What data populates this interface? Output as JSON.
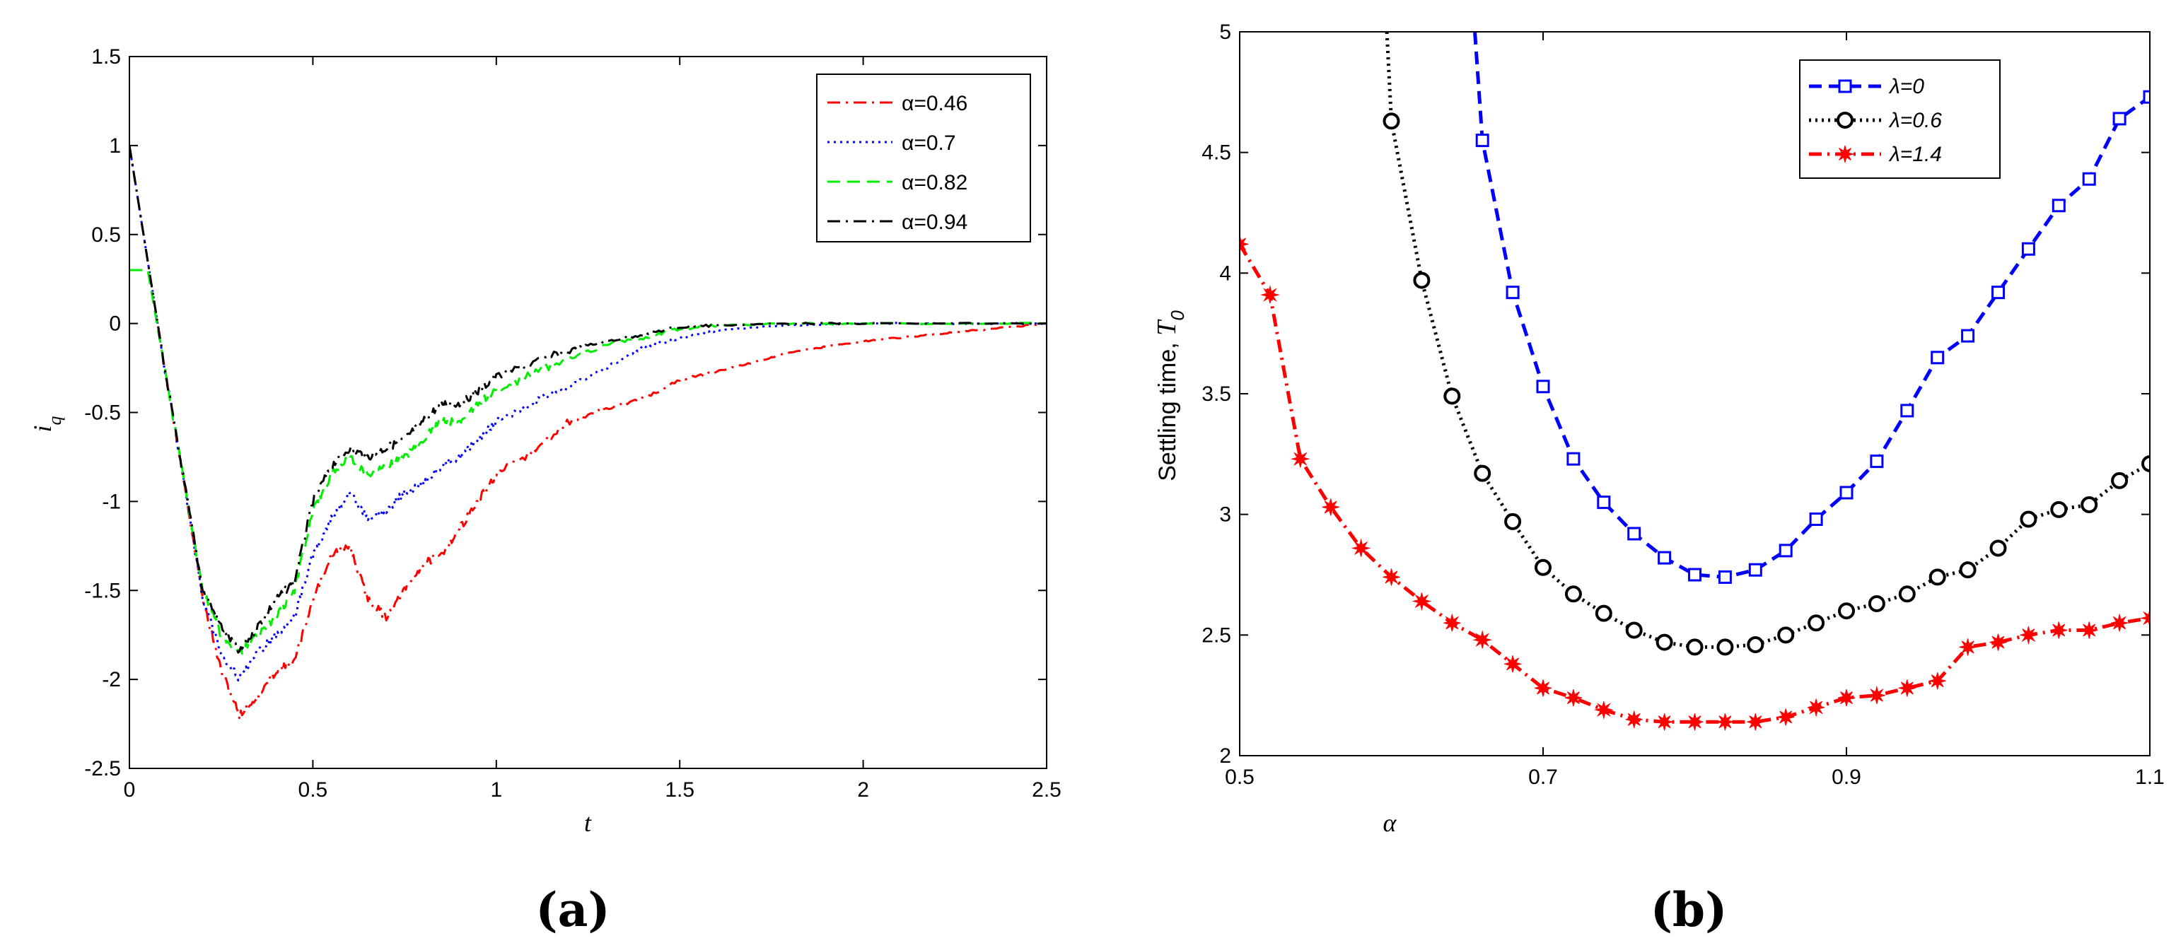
{
  "chart_data": [
    {
      "type": "line",
      "panel_label": "(a)",
      "xlabel": "t",
      "ylabel": "i_q",
      "ylabel_main": "i",
      "ylabel_sub": "q",
      "xlim": [
        0,
        2.5
      ],
      "ylim": [
        -2.5,
        1.5
      ],
      "xticks": [
        0,
        0.5,
        1,
        1.5,
        2,
        2.5
      ],
      "xtick_labels": [
        "0",
        "0.5",
        "1",
        "1.5",
        "2",
        "2.5"
      ],
      "yticks": [
        -2.5,
        -2,
        -1.5,
        -1,
        -0.5,
        0,
        0.5,
        1,
        1.5
      ],
      "ytick_labels": [
        "-2.5",
        "-2",
        "-1.5",
        "-1",
        "-0.5",
        "0",
        "0.5",
        "1",
        "1.5"
      ],
      "legend_position": "top-right",
      "series": [
        {
          "name": "α=0.46",
          "color": "#ff0000",
          "dash": "dashdot",
          "t": [
            0,
            0.05,
            0.1,
            0.15,
            0.2,
            0.25,
            0.3,
            0.35,
            0.4,
            0.45,
            0.5,
            0.55,
            0.6,
            0.65,
            0.7,
            0.75,
            0.8,
            0.85,
            0.9,
            0.95,
            1.0,
            1.1,
            1.2,
            1.3,
            1.4,
            1.5,
            1.6,
            1.7,
            1.8,
            1.9,
            2.0,
            2.1,
            2.2,
            2.3,
            2.4,
            2.5
          ],
          "values": [
            1.0,
            0.35,
            -0.3,
            -0.9,
            -1.55,
            -1.95,
            -2.2,
            -2.1,
            -1.95,
            -1.9,
            -1.55,
            -1.3,
            -1.25,
            -1.55,
            -1.65,
            -1.5,
            -1.35,
            -1.3,
            -1.15,
            -1.0,
            -0.85,
            -0.72,
            -0.55,
            -0.48,
            -0.42,
            -0.32,
            -0.27,
            -0.22,
            -0.16,
            -0.13,
            -0.1,
            -0.08,
            -0.06,
            -0.04,
            -0.02,
            0.0
          ]
        },
        {
          "name": "α=0.7",
          "color": "#0000ff",
          "dash": "dotted",
          "t": [
            0,
            0.05,
            0.1,
            0.15,
            0.2,
            0.25,
            0.3,
            0.35,
            0.4,
            0.45,
            0.5,
            0.55,
            0.6,
            0.65,
            0.7,
            0.75,
            0.8,
            0.85,
            0.9,
            0.95,
            1.0,
            1.1,
            1.2,
            1.3,
            1.4,
            1.5,
            1.6,
            1.7,
            1.8,
            2.0,
            2.2,
            2.5
          ],
          "values": [
            1.0,
            0.35,
            -0.3,
            -0.9,
            -1.55,
            -1.85,
            -2.0,
            -1.85,
            -1.75,
            -1.65,
            -1.3,
            -1.1,
            -0.95,
            -1.1,
            -1.05,
            -0.95,
            -0.9,
            -0.8,
            -0.75,
            -0.65,
            -0.55,
            -0.45,
            -0.35,
            -0.25,
            -0.13,
            -0.08,
            -0.04,
            -0.02,
            -0.01,
            0.0,
            0.0,
            0.0
          ]
        },
        {
          "name": "α=0.82",
          "color": "#00ee00",
          "dash": "dashed",
          "t": [
            0,
            0.05,
            0.1,
            0.15,
            0.2,
            0.25,
            0.3,
            0.35,
            0.4,
            0.45,
            0.5,
            0.55,
            0.6,
            0.65,
            0.7,
            0.75,
            0.8,
            0.85,
            0.9,
            0.95,
            1.0,
            1.1,
            1.2,
            1.3,
            1.4,
            1.5,
            1.6,
            1.8,
            2.0,
            2.5
          ],
          "values": [
            0.3,
            0.3,
            -0.3,
            -0.9,
            -1.5,
            -1.75,
            -1.85,
            -1.75,
            -1.65,
            -1.5,
            -1.05,
            -0.85,
            -0.75,
            -0.85,
            -0.8,
            -0.75,
            -0.65,
            -0.55,
            -0.55,
            -0.45,
            -0.38,
            -0.28,
            -0.2,
            -0.12,
            -0.08,
            -0.03,
            -0.01,
            0.0,
            0.0,
            0.0
          ]
        },
        {
          "name": "α=0.94",
          "color": "#000000",
          "dash": "dashdot",
          "t": [
            0,
            0.05,
            0.1,
            0.15,
            0.2,
            0.25,
            0.3,
            0.35,
            0.4,
            0.45,
            0.5,
            0.55,
            0.6,
            0.65,
            0.7,
            0.75,
            0.8,
            0.85,
            0.9,
            0.95,
            1.0,
            1.1,
            1.2,
            1.3,
            1.4,
            1.5,
            1.6,
            1.8,
            2.0,
            2.5
          ],
          "values": [
            1.0,
            0.35,
            -0.3,
            -0.9,
            -1.5,
            -1.7,
            -1.85,
            -1.7,
            -1.55,
            -1.45,
            -1.0,
            -0.8,
            -0.7,
            -0.75,
            -0.7,
            -0.65,
            -0.55,
            -0.45,
            -0.45,
            -0.38,
            -0.3,
            -0.22,
            -0.15,
            -0.1,
            -0.06,
            -0.02,
            -0.01,
            0.0,
            0.0,
            0.0
          ]
        }
      ]
    },
    {
      "type": "line",
      "panel_label": "(b)",
      "xlabel": "α",
      "ylabel": "Settling time,",
      "ylabel_var": "T",
      "ylabel_sub": "0",
      "xlim": [
        0.5,
        1.1
      ],
      "ylim": [
        2,
        5
      ],
      "xticks": [
        0.5,
        0.7,
        0.9,
        1.1
      ],
      "xtick_labels": [
        "0.5",
        "0.7",
        "0.9",
        "1.1"
      ],
      "yticks": [
        2,
        2.5,
        3,
        3.5,
        4,
        4.5,
        5
      ],
      "ytick_labels": [
        "2",
        "2.5",
        "3",
        "3.5",
        "4",
        "4.5",
        "5"
      ],
      "legend_position": "top-center",
      "series": [
        {
          "name": "λ=0",
          "color": "#0000ff",
          "dash": "dashed",
          "marker": "square",
          "x": [
            0.66,
            0.68,
            0.7,
            0.72,
            0.74,
            0.76,
            0.78,
            0.8,
            0.82,
            0.84,
            0.86,
            0.88,
            0.9,
            0.92,
            0.94,
            0.96,
            0.98,
            1.0,
            1.02,
            1.04,
            1.06,
            1.08,
            1.1
          ],
          "values": [
            4.55,
            3.92,
            3.53,
            3.23,
            3.05,
            2.92,
            2.82,
            2.75,
            2.74,
            2.77,
            2.85,
            2.98,
            3.09,
            3.22,
            3.43,
            3.65,
            3.74,
            3.92,
            4.1,
            4.28,
            4.39,
            4.64,
            4.73
          ],
          "curve_start": {
            "x": 0.655,
            "y": 5.0
          }
        },
        {
          "name": "λ=0.6",
          "color": "#000000",
          "dash": "dotted",
          "marker": "circle",
          "x": [
            0.6,
            0.62,
            0.64,
            0.66,
            0.68,
            0.7,
            0.72,
            0.74,
            0.76,
            0.78,
            0.8,
            0.82,
            0.84,
            0.86,
            0.88,
            0.9,
            0.92,
            0.94,
            0.96,
            0.98,
            1.0,
            1.02,
            1.04,
            1.06,
            1.08,
            1.1
          ],
          "values": [
            4.63,
            3.97,
            3.49,
            3.17,
            2.97,
            2.78,
            2.67,
            2.59,
            2.52,
            2.47,
            2.45,
            2.45,
            2.46,
            2.5,
            2.55,
            2.6,
            2.63,
            2.67,
            2.74,
            2.77,
            2.86,
            2.98,
            3.02,
            3.04,
            3.14,
            3.21
          ],
          "curve_start": {
            "x": 0.597,
            "y": 5.0
          }
        },
        {
          "name": "λ=1.4",
          "color": "#ff0000",
          "dash": "dashdot",
          "marker": "star",
          "x": [
            0.5,
            0.52,
            0.54,
            0.56,
            0.58,
            0.6,
            0.62,
            0.64,
            0.66,
            0.68,
            0.7,
            0.72,
            0.74,
            0.76,
            0.78,
            0.8,
            0.82,
            0.84,
            0.86,
            0.88,
            0.9,
            0.92,
            0.94,
            0.96,
            0.98,
            1.0,
            1.02,
            1.04,
            1.06,
            1.08,
            1.1
          ],
          "values": [
            4.12,
            3.91,
            3.23,
            3.03,
            2.86,
            2.74,
            2.64,
            2.55,
            2.48,
            2.38,
            2.28,
            2.24,
            2.19,
            2.15,
            2.14,
            2.14,
            2.14,
            2.14,
            2.16,
            2.2,
            2.24,
            2.25,
            2.28,
            2.31,
            2.45,
            2.47,
            2.5,
            2.52,
            2.52,
            2.55,
            2.57
          ]
        }
      ]
    }
  ]
}
